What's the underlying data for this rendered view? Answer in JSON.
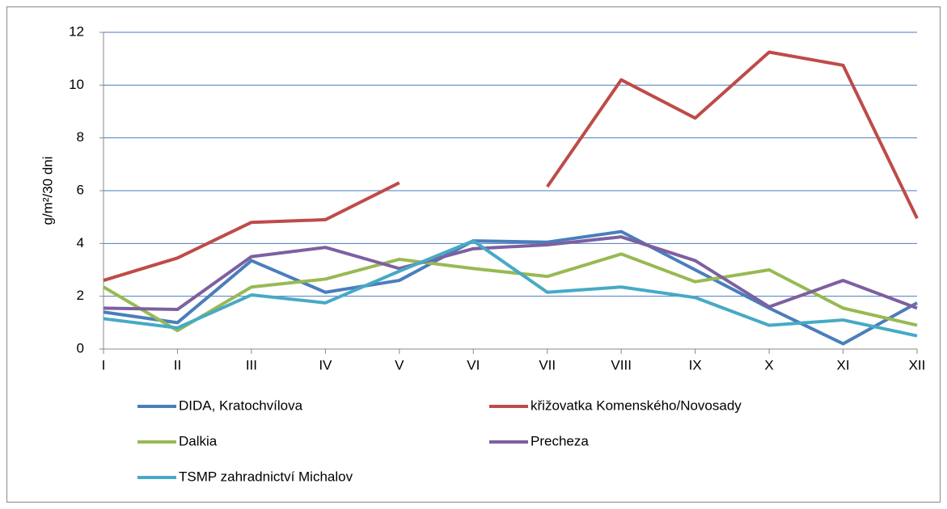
{
  "chart_data": {
    "type": "line",
    "y_label": "g/m²/30 dni",
    "categories": [
      "I",
      "II",
      "III",
      "IV",
      "V",
      "VI",
      "VII",
      "VIII",
      "IX",
      "X",
      "XI",
      "XII"
    ],
    "series": [
      {
        "name": "DIDA, Kratochvílova",
        "color": "#4a7ebb",
        "values": [
          1.4,
          1.0,
          3.35,
          2.15,
          2.6,
          4.1,
          4.05,
          4.45,
          3.0,
          1.55,
          0.2,
          1.75
        ]
      },
      {
        "name": "křižovatka Komenského/Novosady",
        "color": "#be4b48",
        "values": [
          2.6,
          3.45,
          4.8,
          4.9,
          6.3,
          null,
          6.15,
          10.2,
          8.75,
          11.25,
          10.75,
          4.95
        ]
      },
      {
        "name": "Dalkia",
        "color": "#98b954",
        "values": [
          2.35,
          0.7,
          2.35,
          2.65,
          3.4,
          3.05,
          2.75,
          3.6,
          2.55,
          3.0,
          1.55,
          0.9
        ]
      },
      {
        "name": "Precheza",
        "color": "#7d60a0",
        "values": [
          1.55,
          1.5,
          3.5,
          3.85,
          3.05,
          3.8,
          3.95,
          4.25,
          3.35,
          1.6,
          2.6,
          1.55
        ]
      },
      {
        "name": "TSMP zahradnictví Michalov",
        "color": "#46aac5",
        "values": [
          1.15,
          0.8,
          2.05,
          1.75,
          2.95,
          4.1,
          2.15,
          2.35,
          1.95,
          0.9,
          1.1,
          0.5
        ]
      }
    ],
    "ylim": [
      0,
      12
    ],
    "yticks": [
      0,
      2,
      4,
      6,
      8,
      10,
      12
    ],
    "grid": true
  }
}
